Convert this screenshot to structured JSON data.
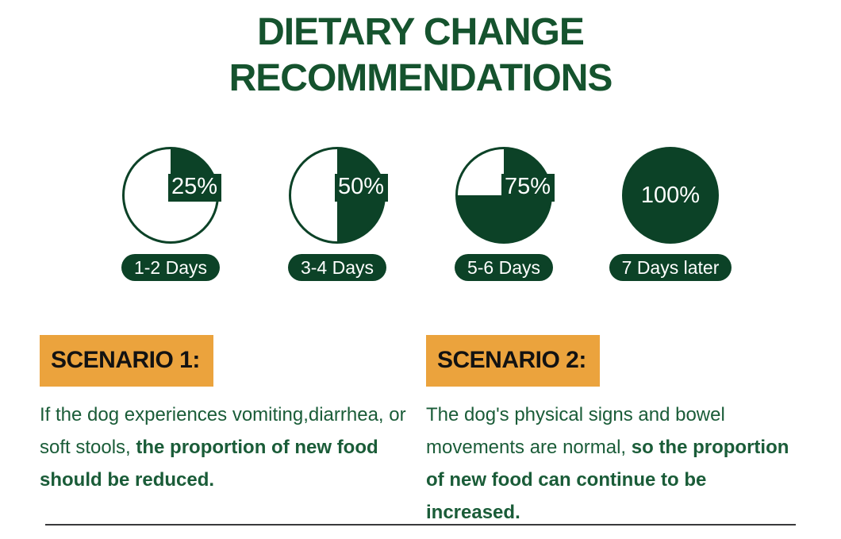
{
  "title": {
    "line1": "DIETARY CHANGE",
    "line2": "RECOMMENDATIONS"
  },
  "timeline": [
    {
      "percent_label": "25%",
      "percent_value": 25,
      "day_label": "1-2 Days"
    },
    {
      "percent_label": "50%",
      "percent_value": 50,
      "day_label": "3-4 Days"
    },
    {
      "percent_label": "75%",
      "percent_value": 75,
      "day_label": "5-6 Days"
    },
    {
      "percent_label": "100%",
      "percent_value": 100,
      "day_label": "7 Days later"
    }
  ],
  "scenarios": [
    {
      "heading": "SCENARIO 1:",
      "text_normal": "If the dog experiences vomiting,diarrhea, or soft stools, ",
      "text_bold": "the proportion of new food should be reduced."
    },
    {
      "heading": "SCENARIO 2:",
      "text_normal": "The dog's physical signs and bowel movements are normal, ",
      "text_bold": "so the proportion of new food can continue to be increased."
    }
  ],
  "colors": {
    "deep_green": "#0c4227",
    "title_green": "#15532e",
    "body_green": "#1a5c38",
    "highlight_orange": "#eba33d",
    "divider_gray": "#3a3a3c",
    "label_white": "#ffffff"
  },
  "chart_data": {
    "type": "pie",
    "title": "Dietary change recommendations - proportion of new food over transition days",
    "categories": [
      "1-2 Days",
      "3-4 Days",
      "5-6 Days",
      "7 Days later"
    ],
    "values": [
      25,
      50,
      75,
      100
    ],
    "value_labels": [
      "25%",
      "50%",
      "75%",
      "100%"
    ],
    "filled_color": "#0c4227",
    "remainder_color": "#ffffff",
    "legend_position": "below-each-pie"
  }
}
